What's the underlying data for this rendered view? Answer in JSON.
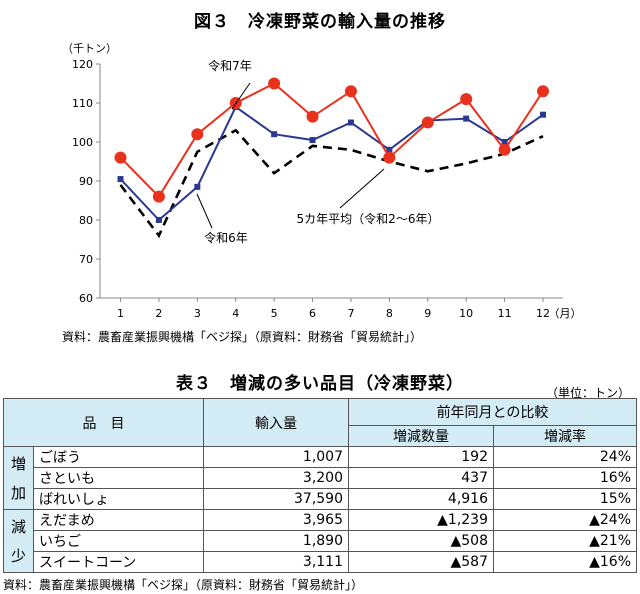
{
  "title": "図３　冷凍野菜の輸入量の推移",
  "chart_data": {
    "type": "line",
    "title": "図３　冷凍野菜の輸入量の推移",
    "ylabel": "（千トン）",
    "xlabel": "（月）",
    "categories": [
      "1",
      "2",
      "3",
      "4",
      "5",
      "6",
      "7",
      "8",
      "9",
      "10",
      "11",
      "12"
    ],
    "yticks": [
      "60",
      "70",
      "80",
      "90",
      "100",
      "110",
      "120"
    ],
    "ylim": [
      60,
      120
    ],
    "grid": false,
    "series": [
      {
        "name": "令和7年",
        "color": "#e8321e",
        "marker": "circle",
        "style": "solid",
        "values": [
          96,
          86,
          102,
          110,
          115,
          106.5,
          113,
          96,
          105,
          111,
          98,
          113
        ]
      },
      {
        "name": "令和6年",
        "color": "#2b3990",
        "marker": "square",
        "style": "solid",
        "values": [
          90.5,
          80,
          88.5,
          109,
          102,
          100.5,
          105,
          98,
          105.5,
          106,
          100,
          107
        ]
      },
      {
        "name": "5カ年平均（令和2～6年）",
        "color": "#000000",
        "marker": "none",
        "style": "dashed",
        "values": [
          89,
          76,
          97.5,
          103,
          92,
          99,
          98,
          95,
          92.5,
          94.5,
          97,
          101.5
        ]
      }
    ]
  },
  "chart_source": "資料：農畜産業振興機構「ベジ探」（原資料：財務省「貿易統計」）",
  "table_title": "表３　増減の多い品目（冷凍野菜）",
  "table_unit": "（単位：トン）",
  "table": {
    "header_item": "品　目",
    "header_import": "輸入量",
    "header_compare": "前年同月との比較",
    "header_change": "増減数量",
    "header_rate": "増減率",
    "group_increase": [
      "増",
      "加"
    ],
    "group_decrease": [
      "減",
      "少"
    ],
    "rows": [
      {
        "name": "ごぼう",
        "import": "1,007",
        "change": "192",
        "rate": "24%"
      },
      {
        "name": "さといも",
        "import": "3,200",
        "change": "437",
        "rate": "16%"
      },
      {
        "name": "ばれいしょ",
        "import": "37,590",
        "change": "4,916",
        "rate": "15%"
      },
      {
        "name": "えだまめ",
        "import": "3,965",
        "change": "▲1,239",
        "rate": "▲24%"
      },
      {
        "name": "いちご",
        "import": "1,890",
        "change": "▲508",
        "rate": "▲21%"
      },
      {
        "name": "スイートコーン",
        "import": "3,111",
        "change": "▲587",
        "rate": "▲16%"
      }
    ]
  },
  "table_source": "資料：農畜産業振興機構「ベジ探」（原資料：財務省「貿易統計」）"
}
